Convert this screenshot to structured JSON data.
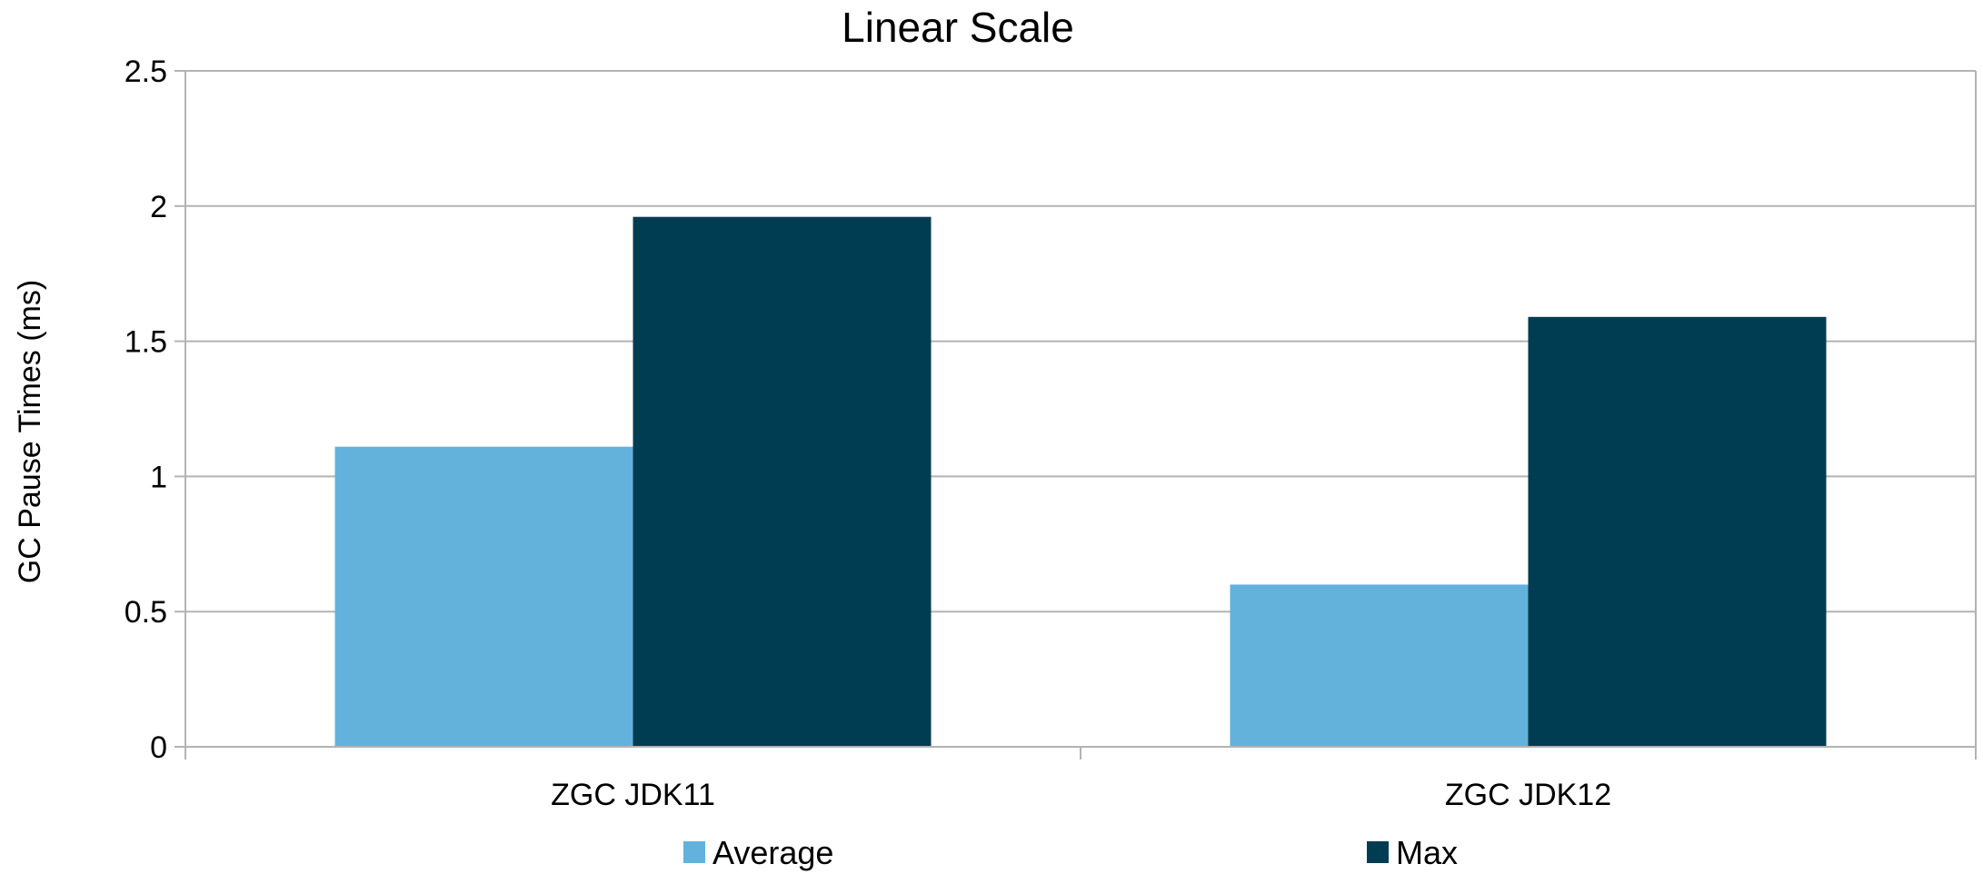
{
  "chart_data": {
    "type": "bar",
    "title": "Linear Scale",
    "xlabel": "",
    "ylabel": "GC Pause Times (ms)",
    "categories": [
      "ZGC JDK11",
      "ZGC JDK12"
    ],
    "series": [
      {
        "name": "Average",
        "values": [
          1.11,
          0.6
        ],
        "color": "#62b2dc"
      },
      {
        "name": "Max",
        "values": [
          1.96,
          1.59
        ],
        "color": "#003c52"
      }
    ],
    "ylim": [
      0,
      2.5
    ],
    "yticks": [
      "0",
      "0.5",
      "1",
      "1.5",
      "2",
      "2.5"
    ],
    "grid": true,
    "legend_position": "bottom"
  },
  "colors": {
    "grid": "#b3b3b3",
    "axis": "#b3b3b3",
    "text": "#000000"
  }
}
